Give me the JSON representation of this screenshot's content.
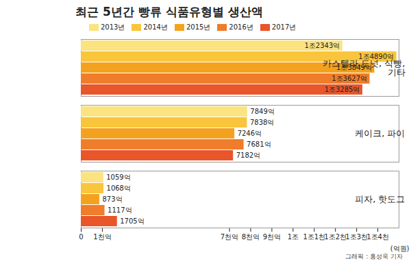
{
  "chart_data": {
    "type": "bar",
    "title": "최근 5년간 빵류 식품유형별 생산액",
    "orientation": "horizontal",
    "categories": [
      "카스텔라,도넛, 식빵, 기타",
      "케이크, 파이",
      "피자, 핫도그"
    ],
    "series": [
      {
        "name": "2013년",
        "color": "#fbe382",
        "values": [
          12343,
          7849,
          1059
        ],
        "value_labels": [
          "1조2343억",
          "7849억",
          "1059억"
        ]
      },
      {
        "name": "2014년",
        "color": "#f8c53c",
        "values": [
          14890,
          7838,
          1068
        ],
        "value_labels": [
          "1조4890억",
          "7838억",
          "1068억"
        ]
      },
      {
        "name": "2015년",
        "color": "#f4a21e",
        "values": [
          13849,
          7246,
          873
        ],
        "value_labels": [
          "1조3849억",
          "7246억",
          "873억"
        ]
      },
      {
        "name": "2016년",
        "color": "#ef7d2b",
        "values": [
          13627,
          7681,
          1117
        ],
        "value_labels": [
          "1조3627억",
          "7681억",
          "1117억"
        ]
      },
      {
        "name": "2017년",
        "color": "#e8562a",
        "values": [
          13285,
          7182,
          1705
        ],
        "value_labels": [
          "1조3285억",
          "7182억",
          "1705억"
        ]
      }
    ],
    "xlim": [
      0,
      15000
    ],
    "xticks": [
      0,
      {
        "value": 1000,
        "label": "1천억"
      },
      {
        "value": 7000,
        "label": "7천억"
      },
      {
        "value": 8000,
        "label": "8천억"
      },
      {
        "value": 9000,
        "label": "9천억"
      },
      {
        "value": 10000,
        "label": "1조"
      },
      {
        "value": 11000,
        "label": "1조1천"
      },
      {
        "value": 12000,
        "label": "1조2천"
      },
      {
        "value": 13000,
        "label": "1조3천"
      },
      {
        "value": 14000,
        "label": "1조4천"
      }
    ],
    "x_label": "(억원)",
    "legend": "top",
    "data_labels": true,
    "grid": false,
    "caption": "그래픽 : 홍성욱 기자"
  }
}
